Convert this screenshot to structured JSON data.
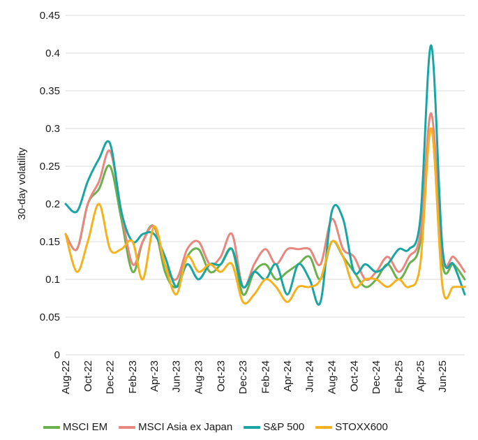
{
  "chart_data": {
    "type": "line",
    "title": "",
    "xlabel": "",
    "ylabel": "30-day volatility",
    "ylim": [
      0,
      0.45
    ],
    "yticks": [
      "0",
      "0.05",
      "0.1",
      "0.15",
      "0.2",
      "0.25",
      "0.3",
      "0.35",
      "0.4",
      "0.45"
    ],
    "grid": true,
    "legend_position": "bottom",
    "x_dates": [
      "2022-08-01",
      "2022-09-01",
      "2022-10-01",
      "2022-11-01",
      "2022-12-01",
      "2023-01-01",
      "2023-02-01",
      "2023-03-01",
      "2023-04-01",
      "2023-05-01",
      "2023-06-01",
      "2023-07-01",
      "2023-08-01",
      "2023-09-01",
      "2023-10-01",
      "2023-11-01",
      "2023-12-01",
      "2024-01-01",
      "2024-02-01",
      "2024-03-01",
      "2024-04-01",
      "2024-05-01",
      "2024-06-01",
      "2024-07-01",
      "2024-08-01",
      "2024-09-01",
      "2024-10-01",
      "2024-11-01",
      "2024-12-01",
      "2025-01-01",
      "2025-02-01",
      "2025-03-01",
      "2025-04-01",
      "2025-05-01",
      "2025-06-01",
      "2025-07-01",
      "2025-08-01"
    ],
    "x_tick_labels": [
      "Aug-22",
      "Oct-22",
      "Dec-22",
      "Feb-23",
      "Apr-23",
      "Jun-23",
      "Aug-23",
      "Oct-23",
      "Dec-23",
      "Feb-24",
      "Apr-24",
      "Jun-24",
      "Aug-24",
      "Oct-24",
      "Dec-24",
      "Feb-25",
      "Apr-25",
      "Jun-25"
    ],
    "series": [
      {
        "name": "MSCI EM",
        "color": "#6ab04c",
        "values": [
          0.16,
          0.14,
          0.2,
          0.22,
          0.25,
          0.18,
          0.11,
          0.15,
          0.17,
          0.11,
          0.09,
          0.13,
          0.14,
          0.11,
          0.12,
          0.14,
          0.08,
          0.11,
          0.12,
          0.1,
          0.11,
          0.12,
          0.13,
          0.1,
          0.15,
          0.13,
          0.11,
          0.09,
          0.1,
          0.12,
          0.1,
          0.12,
          0.15,
          0.3,
          0.12,
          0.12,
          0.1
        ]
      },
      {
        "name": "MSCI Asia ex Japan",
        "color": "#e8877f",
        "values": [
          0.16,
          0.14,
          0.2,
          0.23,
          0.27,
          0.19,
          0.12,
          0.15,
          0.17,
          0.12,
          0.1,
          0.14,
          0.15,
          0.12,
          0.13,
          0.16,
          0.09,
          0.12,
          0.14,
          0.12,
          0.14,
          0.14,
          0.14,
          0.12,
          0.18,
          0.14,
          0.13,
          0.1,
          0.11,
          0.13,
          0.11,
          0.13,
          0.16,
          0.32,
          0.13,
          0.13,
          0.11
        ]
      },
      {
        "name": "S&P 500",
        "color": "#1aa5a5",
        "values": [
          0.2,
          0.19,
          0.23,
          0.26,
          0.28,
          0.19,
          0.15,
          0.16,
          0.16,
          0.13,
          0.09,
          0.12,
          0.1,
          0.12,
          0.12,
          0.14,
          0.09,
          0.11,
          0.1,
          0.12,
          0.08,
          0.12,
          0.1,
          0.07,
          0.19,
          0.18,
          0.11,
          0.12,
          0.11,
          0.12,
          0.14,
          0.14,
          0.18,
          0.41,
          0.14,
          0.12,
          0.08
        ]
      },
      {
        "name": "STOXX600",
        "color": "#f5b21e",
        "values": [
          0.16,
          0.11,
          0.15,
          0.2,
          0.14,
          0.14,
          0.15,
          0.1,
          0.17,
          0.12,
          0.08,
          0.13,
          0.11,
          0.12,
          0.11,
          0.12,
          0.07,
          0.08,
          0.1,
          0.09,
          0.07,
          0.09,
          0.09,
          0.1,
          0.15,
          0.13,
          0.09,
          0.1,
          0.1,
          0.09,
          0.1,
          0.09,
          0.12,
          0.3,
          0.09,
          0.09,
          0.09
        ]
      }
    ]
  }
}
